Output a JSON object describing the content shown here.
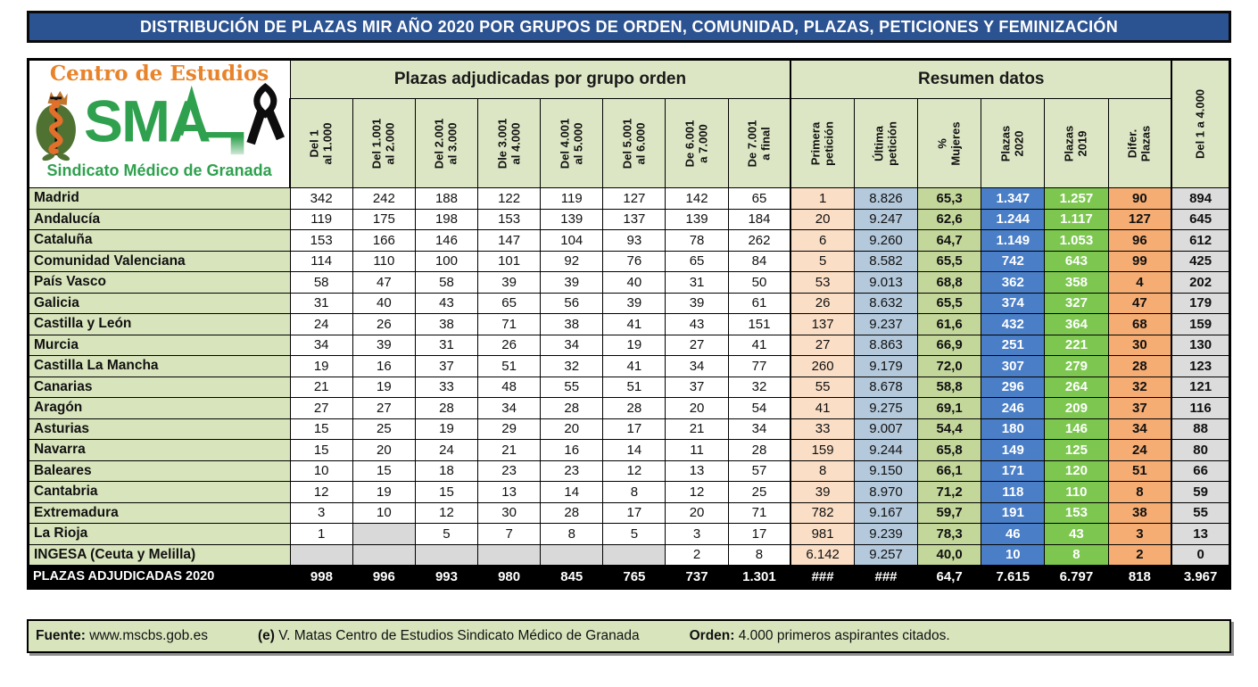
{
  "title": "DISTRIBUCIÓN DE PLAZAS MIR AÑO 2020 POR GRUPOS DE ORDEN, COMUNIDAD, PLAZAS, PETICIONES Y FEMINIZACIÓN",
  "logo": {
    "top": "Centro de Estudios",
    "acronym": "SMA",
    "bottom": "Sindicato Médico de Granada",
    "icons": [
      "pomegranate-snake-icon",
      "sma-ekg-icon",
      "mourning-ribbon-icon"
    ]
  },
  "colors": {
    "title_bar_blue": "#2B5291",
    "header_green": "#DCE6C4",
    "label_green": "#D8E4BC",
    "primera_peach": "#FBDEC6",
    "ultima_bluegray": "#B4C9DC",
    "mujeres_olive": "#C4D79B",
    "plazas2020_blue": "#4A7EC7",
    "plazas2019_green": "#7DC750",
    "difer_orange": "#F5AD73",
    "del1a4000_gray": "#DCDCDC",
    "empty_gray": "#D9D9D9",
    "total_black": "#000000",
    "logo_orange": "#E8832A",
    "logo_green": "#2FA14E"
  },
  "footer": {
    "segments": [
      {
        "label": "Fuente:",
        "text": "www.mscbs.gob.es"
      },
      {
        "label": "(e)",
        "text": "V. Matas Centro de Estudios Sindicato Médico de Granada"
      },
      {
        "label": "Orden:",
        "text": "4.000 primeros aspirantes citados."
      }
    ]
  },
  "chart_data": {
    "type": "table",
    "title": "DISTRIBUCIÓN DE PLAZAS MIR AÑO 2020 POR GRUPOS DE ORDEN, COMUNIDAD, PLAZAS, PETICIONES Y FEMINIZACIÓN",
    "group_headers": {
      "order": "Plazas adjudicadas por grupo orden",
      "resumen": "Resumen datos"
    },
    "order_columns": [
      "Del 1\nal 1.000",
      "Del 1.001\nal 2.000",
      "Del 2.001\nal 3.000",
      "Dle 3.001\nal 4.000",
      "Del 4.001\nal 5.000",
      "Del 5.001\nal 6.000",
      "De 6.001\na 7.000",
      "De 7.001\na final"
    ],
    "resumen_columns": [
      "Primera\npetición",
      "Última\npetición",
      "%\nMujeres",
      "Plazas\n2020",
      "Plazas\n2019",
      "Difer.\nPlazas"
    ],
    "final_column": "Del 1 a 4.000",
    "rows": [
      {
        "name": "Madrid",
        "order": [
          "342",
          "242",
          "188",
          "122",
          "119",
          "127",
          "142",
          "65"
        ],
        "primera": "1",
        "ultima": "8.826",
        "mujeres": "65,3",
        "plazas2020": "1.347",
        "plazas2019": "1.257",
        "difer": "90",
        "del1a4000": "894"
      },
      {
        "name": "Andalucía",
        "order": [
          "119",
          "175",
          "198",
          "153",
          "139",
          "137",
          "139",
          "184"
        ],
        "primera": "20",
        "ultima": "9.247",
        "mujeres": "62,6",
        "plazas2020": "1.244",
        "plazas2019": "1.117",
        "difer": "127",
        "del1a4000": "645"
      },
      {
        "name": "Cataluña",
        "order": [
          "153",
          "166",
          "146",
          "147",
          "104",
          "93",
          "78",
          "262"
        ],
        "primera": "6",
        "ultima": "9.260",
        "mujeres": "64,7",
        "plazas2020": "1.149",
        "plazas2019": "1.053",
        "difer": "96",
        "del1a4000": "612"
      },
      {
        "name": "Comunidad Valenciana",
        "order": [
          "114",
          "110",
          "100",
          "101",
          "92",
          "76",
          "65",
          "84"
        ],
        "primera": "5",
        "ultima": "8.582",
        "mujeres": "65,5",
        "plazas2020": "742",
        "plazas2019": "643",
        "difer": "99",
        "del1a4000": "425"
      },
      {
        "name": "País Vasco",
        "order": [
          "58",
          "47",
          "58",
          "39",
          "39",
          "40",
          "31",
          "50"
        ],
        "primera": "53",
        "ultima": "9.013",
        "mujeres": "68,8",
        "plazas2020": "362",
        "plazas2019": "358",
        "difer": "4",
        "del1a4000": "202"
      },
      {
        "name": "Galicia",
        "order": [
          "31",
          "40",
          "43",
          "65",
          "56",
          "39",
          "39",
          "61"
        ],
        "primera": "26",
        "ultima": "8.632",
        "mujeres": "65,5",
        "plazas2020": "374",
        "plazas2019": "327",
        "difer": "47",
        "del1a4000": "179"
      },
      {
        "name": "Castilla y León",
        "order": [
          "24",
          "26",
          "38",
          "71",
          "38",
          "41",
          "43",
          "151"
        ],
        "primera": "137",
        "ultima": "9.237",
        "mujeres": "61,6",
        "plazas2020": "432",
        "plazas2019": "364",
        "difer": "68",
        "del1a4000": "159"
      },
      {
        "name": "Murcia",
        "order": [
          "34",
          "39",
          "31",
          "26",
          "34",
          "19",
          "27",
          "41"
        ],
        "primera": "27",
        "ultima": "8.863",
        "mujeres": "66,9",
        "plazas2020": "251",
        "plazas2019": "221",
        "difer": "30",
        "del1a4000": "130"
      },
      {
        "name": "Castilla La Mancha",
        "order": [
          "19",
          "16",
          "37",
          "51",
          "32",
          "41",
          "34",
          "77"
        ],
        "primera": "260",
        "ultima": "9.179",
        "mujeres": "72,0",
        "plazas2020": "307",
        "plazas2019": "279",
        "difer": "28",
        "del1a4000": "123"
      },
      {
        "name": "Canarias",
        "order": [
          "21",
          "19",
          "33",
          "48",
          "55",
          "51",
          "37",
          "32"
        ],
        "primera": "55",
        "ultima": "8.678",
        "mujeres": "58,8",
        "plazas2020": "296",
        "plazas2019": "264",
        "difer": "32",
        "del1a4000": "121"
      },
      {
        "name": "Aragón",
        "order": [
          "27",
          "27",
          "28",
          "34",
          "28",
          "28",
          "20",
          "54"
        ],
        "primera": "41",
        "ultima": "9.275",
        "mujeres": "69,1",
        "plazas2020": "246",
        "plazas2019": "209",
        "difer": "37",
        "del1a4000": "116"
      },
      {
        "name": "Asturias",
        "order": [
          "15",
          "25",
          "19",
          "29",
          "20",
          "17",
          "21",
          "34"
        ],
        "primera": "33",
        "ultima": "9.007",
        "mujeres": "54,4",
        "plazas2020": "180",
        "plazas2019": "146",
        "difer": "34",
        "del1a4000": "88"
      },
      {
        "name": "Navarra",
        "order": [
          "15",
          "20",
          "24",
          "21",
          "16",
          "14",
          "11",
          "28"
        ],
        "primera": "159",
        "ultima": "9.244",
        "mujeres": "65,8",
        "plazas2020": "149",
        "plazas2019": "125",
        "difer": "24",
        "del1a4000": "80"
      },
      {
        "name": "Baleares",
        "order": [
          "10",
          "15",
          "18",
          "23",
          "23",
          "12",
          "13",
          "57"
        ],
        "primera": "8",
        "ultima": "9.150",
        "mujeres": "66,1",
        "plazas2020": "171",
        "plazas2019": "120",
        "difer": "51",
        "del1a4000": "66"
      },
      {
        "name": "Cantabria",
        "order": [
          "12",
          "19",
          "15",
          "13",
          "14",
          "8",
          "12",
          "25"
        ],
        "primera": "39",
        "ultima": "8.970",
        "mujeres": "71,2",
        "plazas2020": "118",
        "plazas2019": "110",
        "difer": "8",
        "del1a4000": "59"
      },
      {
        "name": "Extremadura",
        "order": [
          "3",
          "10",
          "12",
          "30",
          "28",
          "17",
          "20",
          "71"
        ],
        "primera": "782",
        "ultima": "9.167",
        "mujeres": "59,7",
        "plazas2020": "191",
        "plazas2019": "153",
        "difer": "38",
        "del1a4000": "55"
      },
      {
        "name": "La Rioja",
        "order": [
          "1",
          null,
          "5",
          "7",
          "8",
          "5",
          "3",
          "17"
        ],
        "primera": "981",
        "ultima": "9.239",
        "mujeres": "78,3",
        "plazas2020": "46",
        "plazas2019": "43",
        "difer": "3",
        "del1a4000": "13"
      },
      {
        "name": "INGESA (Ceuta y Melilla)",
        "order": [
          null,
          null,
          null,
          null,
          null,
          null,
          "2",
          "8"
        ],
        "primera": "6.142",
        "ultima": "9.257",
        "mujeres": "40,0",
        "plazas2020": "10",
        "plazas2019": "8",
        "difer": "2",
        "del1a4000": "0"
      }
    ],
    "total_row": {
      "name": "PLAZAS ADJUDICADAS 2020",
      "order": [
        "998",
        "996",
        "993",
        "980",
        "845",
        "765",
        "737",
        "1.301"
      ],
      "primera": "###",
      "ultima": "###",
      "mujeres": "64,7",
      "plazas2020": "7.615",
      "plazas2019": "6.797",
      "difer": "818",
      "del1a4000": "3.967"
    }
  }
}
